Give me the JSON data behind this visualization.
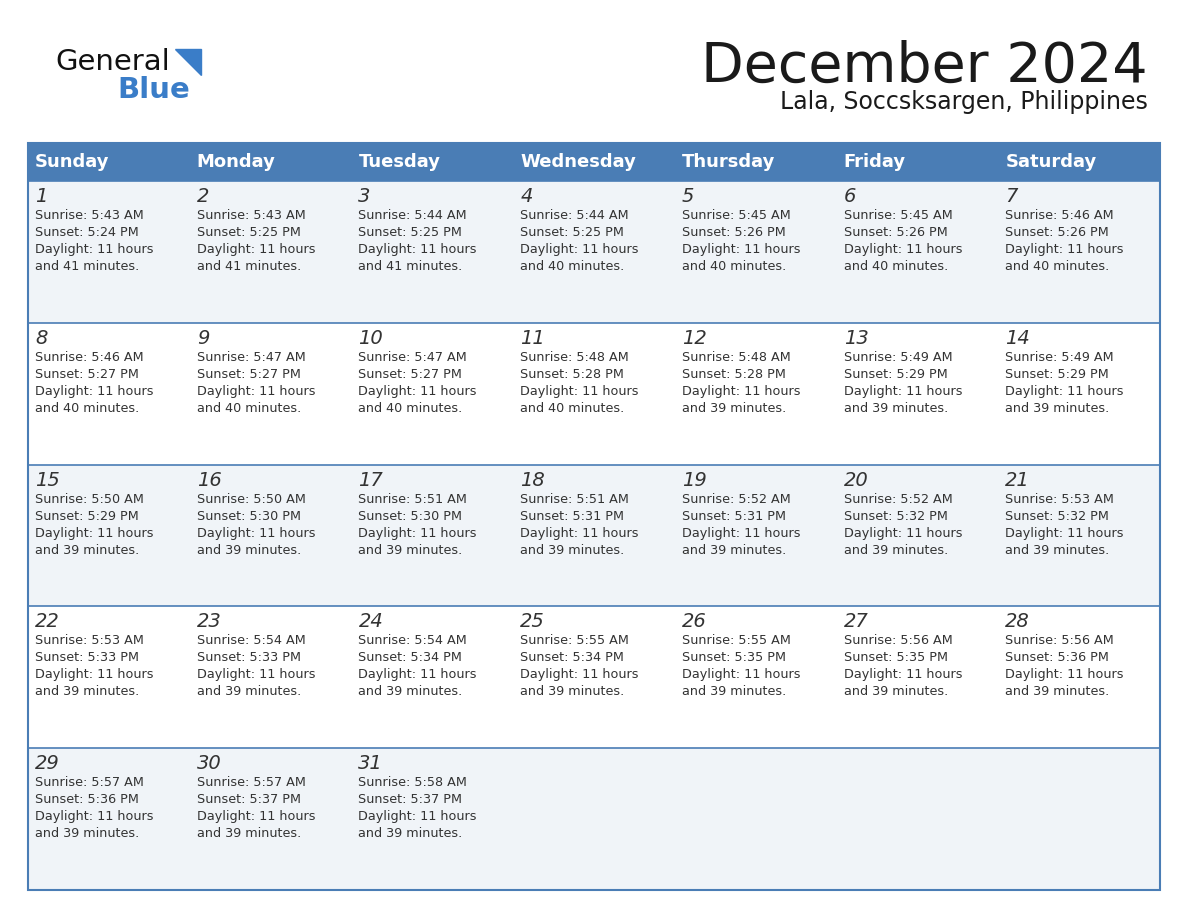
{
  "title": "December 2024",
  "subtitle": "Lala, Soccsksargen, Philippines",
  "days_of_week": [
    "Sunday",
    "Monday",
    "Tuesday",
    "Wednesday",
    "Thursday",
    "Friday",
    "Saturday"
  ],
  "header_bg": "#4A7DB5",
  "header_text_color": "#FFFFFF",
  "row_bg_odd": "#F0F4F8",
  "row_bg_even": "#FFFFFF",
  "cell_border_color": "#4A7DB5",
  "title_color": "#1a1a1a",
  "subtitle_color": "#1a1a1a",
  "text_color": "#333333",
  "general_text_color": "#1a1a1a",
  "general_blue_accent": "#3A7DC8",
  "calendar_data": [
    [
      {
        "day": 1,
        "sunrise": "5:43 AM",
        "sunset": "5:24 PM",
        "daylight": "11 hours and 41 minutes."
      },
      {
        "day": 2,
        "sunrise": "5:43 AM",
        "sunset": "5:25 PM",
        "daylight": "11 hours and 41 minutes."
      },
      {
        "day": 3,
        "sunrise": "5:44 AM",
        "sunset": "5:25 PM",
        "daylight": "11 hours and 41 minutes."
      },
      {
        "day": 4,
        "sunrise": "5:44 AM",
        "sunset": "5:25 PM",
        "daylight": "11 hours and 40 minutes."
      },
      {
        "day": 5,
        "sunrise": "5:45 AM",
        "sunset": "5:26 PM",
        "daylight": "11 hours and 40 minutes."
      },
      {
        "day": 6,
        "sunrise": "5:45 AM",
        "sunset": "5:26 PM",
        "daylight": "11 hours and 40 minutes."
      },
      {
        "day": 7,
        "sunrise": "5:46 AM",
        "sunset": "5:26 PM",
        "daylight": "11 hours and 40 minutes."
      }
    ],
    [
      {
        "day": 8,
        "sunrise": "5:46 AM",
        "sunset": "5:27 PM",
        "daylight": "11 hours and 40 minutes."
      },
      {
        "day": 9,
        "sunrise": "5:47 AM",
        "sunset": "5:27 PM",
        "daylight": "11 hours and 40 minutes."
      },
      {
        "day": 10,
        "sunrise": "5:47 AM",
        "sunset": "5:27 PM",
        "daylight": "11 hours and 40 minutes."
      },
      {
        "day": 11,
        "sunrise": "5:48 AM",
        "sunset": "5:28 PM",
        "daylight": "11 hours and 40 minutes."
      },
      {
        "day": 12,
        "sunrise": "5:48 AM",
        "sunset": "5:28 PM",
        "daylight": "11 hours and 39 minutes."
      },
      {
        "day": 13,
        "sunrise": "5:49 AM",
        "sunset": "5:29 PM",
        "daylight": "11 hours and 39 minutes."
      },
      {
        "day": 14,
        "sunrise": "5:49 AM",
        "sunset": "5:29 PM",
        "daylight": "11 hours and 39 minutes."
      }
    ],
    [
      {
        "day": 15,
        "sunrise": "5:50 AM",
        "sunset": "5:29 PM",
        "daylight": "11 hours and 39 minutes."
      },
      {
        "day": 16,
        "sunrise": "5:50 AM",
        "sunset": "5:30 PM",
        "daylight": "11 hours and 39 minutes."
      },
      {
        "day": 17,
        "sunrise": "5:51 AM",
        "sunset": "5:30 PM",
        "daylight": "11 hours and 39 minutes."
      },
      {
        "day": 18,
        "sunrise": "5:51 AM",
        "sunset": "5:31 PM",
        "daylight": "11 hours and 39 minutes."
      },
      {
        "day": 19,
        "sunrise": "5:52 AM",
        "sunset": "5:31 PM",
        "daylight": "11 hours and 39 minutes."
      },
      {
        "day": 20,
        "sunrise": "5:52 AM",
        "sunset": "5:32 PM",
        "daylight": "11 hours and 39 minutes."
      },
      {
        "day": 21,
        "sunrise": "5:53 AM",
        "sunset": "5:32 PM",
        "daylight": "11 hours and 39 minutes."
      }
    ],
    [
      {
        "day": 22,
        "sunrise": "5:53 AM",
        "sunset": "5:33 PM",
        "daylight": "11 hours and 39 minutes."
      },
      {
        "day": 23,
        "sunrise": "5:54 AM",
        "sunset": "5:33 PM",
        "daylight": "11 hours and 39 minutes."
      },
      {
        "day": 24,
        "sunrise": "5:54 AM",
        "sunset": "5:34 PM",
        "daylight": "11 hours and 39 minutes."
      },
      {
        "day": 25,
        "sunrise": "5:55 AM",
        "sunset": "5:34 PM",
        "daylight": "11 hours and 39 minutes."
      },
      {
        "day": 26,
        "sunrise": "5:55 AM",
        "sunset": "5:35 PM",
        "daylight": "11 hours and 39 minutes."
      },
      {
        "day": 27,
        "sunrise": "5:56 AM",
        "sunset": "5:35 PM",
        "daylight": "11 hours and 39 minutes."
      },
      {
        "day": 28,
        "sunrise": "5:56 AM",
        "sunset": "5:36 PM",
        "daylight": "11 hours and 39 minutes."
      }
    ],
    [
      {
        "day": 29,
        "sunrise": "5:57 AM",
        "sunset": "5:36 PM",
        "daylight": "11 hours and 39 minutes."
      },
      {
        "day": 30,
        "sunrise": "5:57 AM",
        "sunset": "5:37 PM",
        "daylight": "11 hours and 39 minutes."
      },
      {
        "day": 31,
        "sunrise": "5:58 AM",
        "sunset": "5:37 PM",
        "daylight": "11 hours and 39 minutes."
      },
      null,
      null,
      null,
      null
    ]
  ]
}
